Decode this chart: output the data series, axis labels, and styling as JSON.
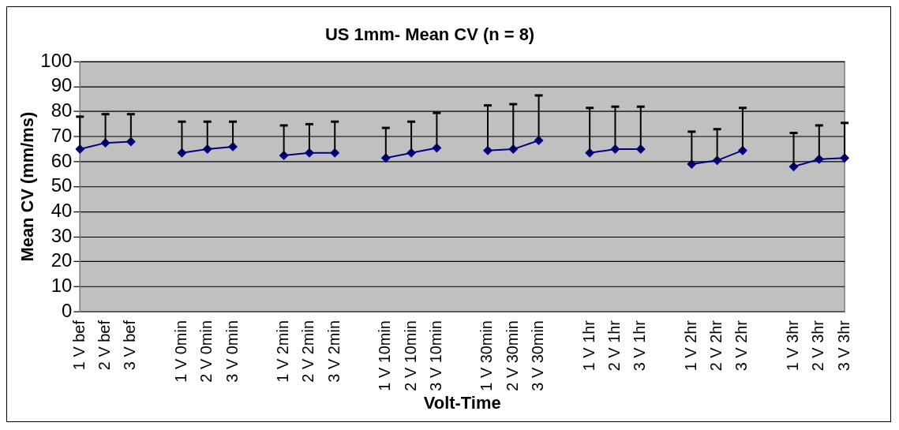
{
  "chart_data": {
    "type": "line",
    "title": "US 1mm- Mean CV (n = 8)",
    "xlabel": "Volt-Time",
    "ylabel": "Mean CV (mm/ms)",
    "categories": [
      "1 V bef",
      "2 V bef",
      "3 V bef",
      null,
      "1 V 0min",
      "2 V 0min",
      "3 V 0min",
      null,
      "1 V 2min",
      "2 V 2min",
      "3 V 2min",
      null,
      "1 V 10min",
      "2 V 10min",
      "3 V 10min",
      null,
      "1 V 30min",
      "2 V 30min",
      "3 V 30min",
      null,
      "1 V 1hr",
      "2 V 1hr",
      "3 V 1hr",
      null,
      "1 V 2hr",
      "2 V 2hr",
      "3 V 2hr",
      null,
      "1 V 3hr",
      "2 V 3hr",
      "3 V 3hr"
    ],
    "series": [
      {
        "color": "#000080",
        "values": [
          65,
          67.5,
          68,
          null,
          63.5,
          65,
          66,
          null,
          62.5,
          63.5,
          63.5,
          null,
          61.5,
          63.5,
          65.5,
          null,
          64.5,
          65,
          68.5,
          null,
          63.5,
          65,
          65,
          null,
          59,
          60.5,
          64.5,
          null,
          58,
          61,
          61.5
        ],
        "errors": [
          [
            65,
            78
          ],
          [
            67.5,
            79
          ],
          [
            68,
            79
          ],
          null,
          [
            63.5,
            76
          ],
          [
            65,
            76
          ],
          [
            66,
            76
          ],
          null,
          [
            62.5,
            74.5
          ],
          [
            63.5,
            75
          ],
          [
            63.5,
            76
          ],
          null,
          [
            61.5,
            73.5
          ],
          [
            63.5,
            76
          ],
          [
            65.5,
            79.5
          ],
          null,
          [
            64.5,
            82.5
          ],
          [
            65,
            83
          ],
          [
            68.5,
            86.5
          ],
          null,
          [
            63.5,
            81.5
          ],
          [
            65,
            82
          ],
          [
            65,
            82
          ],
          null,
          [
            59,
            72
          ],
          [
            60.5,
            73
          ],
          [
            64.5,
            81.5
          ],
          null,
          [
            58,
            71.5
          ],
          [
            61,
            74.5
          ],
          [
            61.5,
            75.5
          ]
        ]
      }
    ],
    "ylim": [
      0,
      100
    ],
    "yticks": [
      0,
      10,
      20,
      30,
      40,
      50,
      60,
      70,
      80,
      90,
      100
    ],
    "grid": "y",
    "legend": false,
    "marker": "diamond",
    "line_style": "solid"
  }
}
